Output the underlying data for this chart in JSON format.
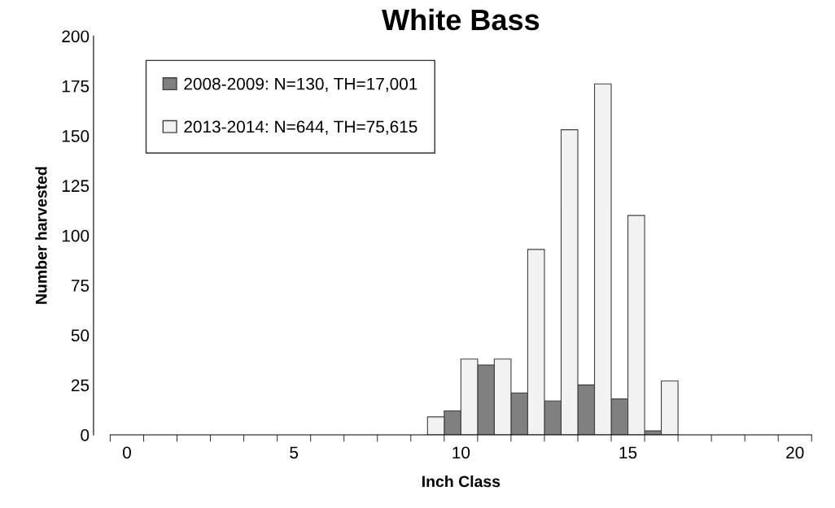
{
  "chart_data": {
    "type": "bar",
    "title": "White Bass",
    "xlabel": "Inch Class",
    "ylabel": "Number harvested",
    "categories": [
      "0",
      null,
      null,
      null,
      null,
      "5",
      null,
      null,
      null,
      null,
      "10",
      null,
      null,
      null,
      null,
      "15",
      null,
      null,
      null,
      null,
      "20"
    ],
    "series": [
      {
        "name": "2008-2009: N=130, TH=17,001",
        "color": "#808080",
        "values": [
          0,
          0,
          0,
          0,
          0,
          0,
          0,
          0,
          0,
          0,
          12,
          35,
          21,
          17,
          25,
          18,
          2,
          0,
          0,
          0,
          0
        ]
      },
      {
        "name": "2013-2014: N=644, TH=75,615",
        "color": "#f2f2f2",
        "values": [
          0,
          0,
          0,
          0,
          0,
          0,
          0,
          0,
          0,
          9,
          38,
          38,
          93,
          153,
          176,
          110,
          27,
          0,
          0,
          0,
          0
        ]
      }
    ],
    "ylim": [
      0,
      200
    ],
    "yticks": [
      0,
      25,
      50,
      75,
      100,
      125,
      150,
      175,
      200
    ],
    "grid": false,
    "legend": "top left"
  }
}
